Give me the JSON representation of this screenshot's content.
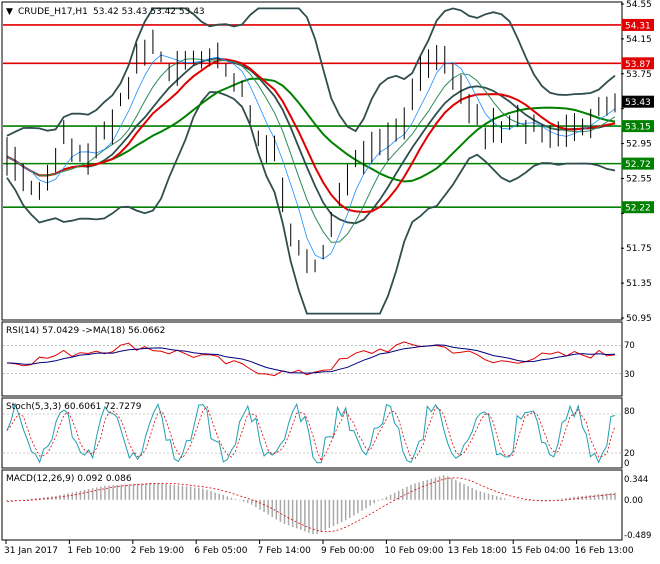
{
  "header": {
    "symbol": "CRUDE_H17,H1",
    "ohlc": "53.42 53.43 53.42 53.43"
  },
  "panels": {
    "rsi": {
      "label": "RSI(14) 57.0429 ->MA(18) 56.0662",
      "levels": [
        "70",
        "30"
      ]
    },
    "stoch": {
      "label": "Stoch(5,3,3) 60.6061 72.7279",
      "levels": [
        "80",
        "20",
        "0"
      ]
    },
    "macd": {
      "label": "MACD(12,26,9) 0.092 0.086",
      "levels": [
        "0.344",
        "0.00",
        "-0.489"
      ]
    }
  },
  "chart_data": [
    {
      "type": "line",
      "title": "CRUDE_H17,H1",
      "x_labels": [
        "31 Jan 2017",
        "1 Feb 10:00",
        "2 Feb 19:00",
        "6 Feb 05:00",
        "7 Feb 14:00",
        "9 Feb 00:00",
        "10 Feb 09:00",
        "13 Feb 18:00",
        "15 Feb 04:00",
        "16 Feb 13:00"
      ],
      "y_ticks": [
        "54.55",
        "54.15",
        "53.75",
        "53.35",
        "52.95",
        "52.55",
        "52.15",
        "51.75",
        "51.35",
        "50.95"
      ],
      "ylim": [
        50.95,
        54.55
      ],
      "levels": [
        {
          "label": "54.31",
          "value": 54.31,
          "color": "#e00000"
        },
        {
          "label": "53.87",
          "value": 53.87,
          "color": "#e00000"
        },
        {
          "label": "53.15",
          "value": 53.15,
          "color": "#008000"
        },
        {
          "label": "52.72",
          "value": 52.72,
          "color": "#008000"
        },
        {
          "label": "52.22",
          "value": 52.22,
          "color": "#008000"
        }
      ],
      "last_price": {
        "label": "53.43",
        "value": 53.43
      },
      "colors": {
        "price": "#000000",
        "ma_fast": "#e00000",
        "ma_slow": "#008000",
        "bands": "#2f4f4f"
      },
      "price_anchors": [
        [
          0,
          52.8
        ],
        [
          4,
          52.4
        ],
        [
          7,
          52.95
        ],
        [
          10,
          52.75
        ],
        [
          13,
          53.2
        ],
        [
          16,
          53.9
        ],
        [
          18,
          54.05
        ],
        [
          20,
          53.85
        ],
        [
          23,
          53.9
        ],
        [
          26,
          53.95
        ],
        [
          29,
          53.6
        ],
        [
          31,
          53.0
        ],
        [
          33,
          52.8
        ],
        [
          35,
          51.9
        ],
        [
          37,
          51.55
        ],
        [
          39,
          51.65
        ],
        [
          41,
          52.4
        ],
        [
          43,
          52.7
        ],
        [
          45,
          52.9
        ],
        [
          47,
          53.0
        ],
        [
          49,
          53.2
        ],
        [
          51,
          53.7
        ],
        [
          53,
          54.05
        ],
        [
          55,
          53.8
        ],
        [
          57,
          53.4
        ],
        [
          59,
          53.0
        ],
        [
          61,
          53.15
        ],
        [
          63,
          53.25
        ],
        [
          65,
          53.1
        ],
        [
          67,
          53.0
        ],
        [
          69,
          53.1
        ],
        [
          71,
          53.2
        ],
        [
          73,
          53.3
        ],
        [
          75,
          53.43
        ]
      ]
    },
    {
      "type": "line",
      "title": "RSI(14) 57.0429 ->MA(18) 56.0662",
      "ylim": [
        0,
        100
      ],
      "levels": [
        70,
        30
      ],
      "anchors": [
        [
          0,
          45
        ],
        [
          4,
          50
        ],
        [
          8,
          60
        ],
        [
          12,
          65
        ],
        [
          16,
          70
        ],
        [
          20,
          62
        ],
        [
          24,
          55
        ],
        [
          28,
          42
        ],
        [
          32,
          33
        ],
        [
          36,
          28
        ],
        [
          40,
          40
        ],
        [
          44,
          60
        ],
        [
          48,
          68
        ],
        [
          52,
          72
        ],
        [
          56,
          62
        ],
        [
          60,
          45
        ],
        [
          64,
          52
        ],
        [
          68,
          55
        ],
        [
          72,
          58
        ],
        [
          75,
          57
        ]
      ]
    },
    {
      "type": "line",
      "title": "Stoch(5,3,3) 60.6061 72.7279",
      "ylim": [
        0,
        100
      ],
      "levels": [
        80,
        20
      ]
    },
    {
      "type": "bar",
      "title": "MACD(12,26,9) 0.092 0.086",
      "ylim": [
        -0.489,
        0.344
      ],
      "anchors": [
        [
          0,
          -0.02
        ],
        [
          6,
          0.05
        ],
        [
          12,
          0.18
        ],
        [
          18,
          0.22
        ],
        [
          24,
          0.15
        ],
        [
          30,
          -0.05
        ],
        [
          34,
          -0.3
        ],
        [
          38,
          -0.45
        ],
        [
          42,
          -0.25
        ],
        [
          46,
          0.0
        ],
        [
          50,
          0.2
        ],
        [
          54,
          0.32
        ],
        [
          58,
          0.12
        ],
        [
          62,
          0.0
        ],
        [
          66,
          -0.02
        ],
        [
          70,
          0.04
        ],
        [
          75,
          0.092
        ]
      ]
    }
  ]
}
